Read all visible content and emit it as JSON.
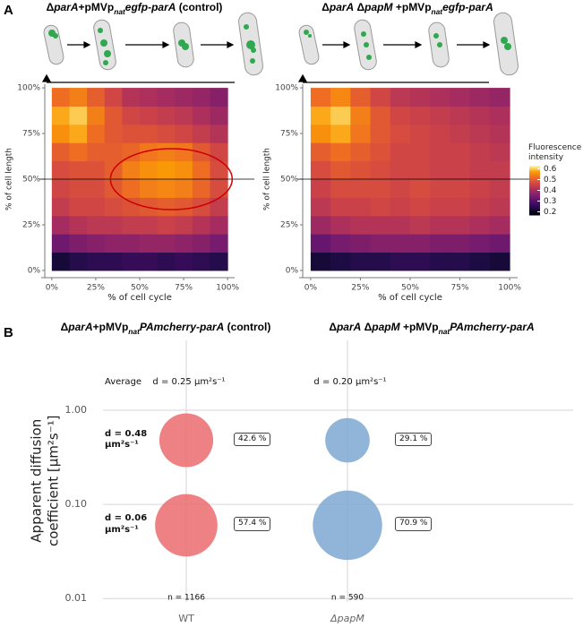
{
  "panel_labels": [
    "A",
    "B"
  ],
  "chart_data": [
    {
      "type": "heatmap",
      "title": [
        {
          "text": "Δ",
          "style": "n"
        },
        {
          "text": "parA",
          "style": "i"
        },
        {
          "text": "+pMVp",
          "style": "n"
        },
        {
          "text": "nat",
          "style": "sub"
        },
        {
          "text": "egfp-parA",
          "style": "i"
        },
        {
          "text": " (control)",
          "style": "n"
        }
      ],
      "xlabel": "% of cell cycle",
      "ylabel": "% of cell length",
      "xlim": [
        -4,
        104
      ],
      "ylim": [
        -2,
        102
      ],
      "xticks": [
        {
          "value": 0,
          "label": "0%"
        },
        {
          "value": 25,
          "label": "25%"
        },
        {
          "value": 50,
          "label": "50%"
        },
        {
          "value": 75,
          "label": "75%"
        },
        {
          "value": 100,
          "label": "100%"
        }
      ],
      "yticks": [
        {
          "value": 0,
          "label": "0%"
        },
        {
          "value": 25,
          "label": "25%"
        },
        {
          "value": 50,
          "label": "50%"
        },
        {
          "value": 75,
          "label": "75%"
        },
        {
          "value": 100,
          "label": "100%"
        }
      ],
      "x_bins": [
        0,
        10,
        20,
        30,
        40,
        50,
        60,
        70,
        80,
        90,
        100
      ],
      "y_bins": [
        0,
        10,
        20,
        30,
        40,
        50,
        60,
        70,
        80,
        90,
        100
      ],
      "colormap": "inferno",
      "clim": [
        0.17,
        0.63
      ],
      "hline": 50,
      "z": [
        [
          0.22,
          0.24,
          0.25,
          0.25,
          0.26,
          0.26,
          0.25,
          0.26,
          0.25,
          0.24
        ],
        [
          0.33,
          0.35,
          0.36,
          0.37,
          0.37,
          0.38,
          0.38,
          0.37,
          0.36,
          0.34
        ],
        [
          0.4,
          0.42,
          0.43,
          0.43,
          0.44,
          0.44,
          0.45,
          0.44,
          0.42,
          0.4
        ],
        [
          0.44,
          0.46,
          0.46,
          0.47,
          0.48,
          0.49,
          0.5,
          0.49,
          0.47,
          0.44
        ],
        [
          0.46,
          0.47,
          0.47,
          0.49,
          0.52,
          0.54,
          0.55,
          0.54,
          0.51,
          0.47
        ],
        [
          0.47,
          0.48,
          0.48,
          0.5,
          0.54,
          0.56,
          0.57,
          0.56,
          0.52,
          0.47
        ],
        [
          0.5,
          0.52,
          0.5,
          0.5,
          0.51,
          0.53,
          0.54,
          0.53,
          0.49,
          0.46
        ],
        [
          0.56,
          0.58,
          0.52,
          0.49,
          0.48,
          0.48,
          0.47,
          0.46,
          0.44,
          0.42
        ],
        [
          0.58,
          0.6,
          0.54,
          0.49,
          0.46,
          0.45,
          0.44,
          0.43,
          0.41,
          0.39
        ],
        [
          0.52,
          0.54,
          0.5,
          0.46,
          0.42,
          0.41,
          0.4,
          0.39,
          0.38,
          0.36
        ]
      ]
    },
    {
      "type": "heatmap",
      "title": [
        {
          "text": "Δ",
          "style": "n"
        },
        {
          "text": "parA",
          "style": "i"
        },
        {
          "text": " Δ",
          "style": "n"
        },
        {
          "text": "papM",
          "style": "i"
        },
        {
          "text": " +pMVp",
          "style": "n"
        },
        {
          "text": "nat",
          "style": "sub"
        },
        {
          "text": "egfp-parA",
          "style": "i"
        }
      ],
      "xlabel": "% of cell cycle",
      "ylabel": "% of cell length",
      "xlim": [
        -4,
        104
      ],
      "ylim": [
        -2,
        102
      ],
      "xticks": [
        {
          "value": 0,
          "label": "0%"
        },
        {
          "value": 25,
          "label": "25%"
        },
        {
          "value": 50,
          "label": "50%"
        },
        {
          "value": 75,
          "label": "75%"
        },
        {
          "value": 100,
          "label": "100%"
        }
      ],
      "yticks": [
        {
          "value": 0,
          "label": "0%"
        },
        {
          "value": 25,
          "label": "25%"
        },
        {
          "value": 50,
          "label": "50%"
        },
        {
          "value": 75,
          "label": "75%"
        },
        {
          "value": 100,
          "label": "100%"
        }
      ],
      "x_bins": [
        0,
        10,
        20,
        30,
        40,
        50,
        60,
        70,
        80,
        90,
        100
      ],
      "y_bins": [
        0,
        10,
        20,
        30,
        40,
        50,
        60,
        70,
        80,
        90,
        100
      ],
      "colormap": "inferno",
      "clim": [
        0.17,
        0.63
      ],
      "hline": 50,
      "colorbar_title": "Fluorescence intensity",
      "cticks": [
        0.2,
        0.3,
        0.4,
        0.5,
        0.6
      ],
      "z": [
        [
          0.22,
          0.23,
          0.24,
          0.24,
          0.25,
          0.25,
          0.24,
          0.24,
          0.23,
          0.22
        ],
        [
          0.32,
          0.34,
          0.35,
          0.36,
          0.36,
          0.36,
          0.35,
          0.35,
          0.34,
          0.33
        ],
        [
          0.39,
          0.41,
          0.42,
          0.42,
          0.42,
          0.43,
          0.42,
          0.42,
          0.41,
          0.4
        ],
        [
          0.43,
          0.45,
          0.45,
          0.46,
          0.45,
          0.46,
          0.45,
          0.45,
          0.44,
          0.43
        ],
        [
          0.45,
          0.47,
          0.47,
          0.47,
          0.46,
          0.47,
          0.46,
          0.46,
          0.45,
          0.44
        ],
        [
          0.47,
          0.49,
          0.48,
          0.47,
          0.46,
          0.46,
          0.45,
          0.45,
          0.44,
          0.44
        ],
        [
          0.5,
          0.52,
          0.5,
          0.48,
          0.46,
          0.46,
          0.45,
          0.45,
          0.44,
          0.43
        ],
        [
          0.56,
          0.58,
          0.53,
          0.49,
          0.47,
          0.46,
          0.45,
          0.44,
          0.43,
          0.42
        ],
        [
          0.58,
          0.6,
          0.54,
          0.49,
          0.46,
          0.45,
          0.44,
          0.43,
          0.42,
          0.41
        ],
        [
          0.52,
          0.55,
          0.5,
          0.46,
          0.43,
          0.42,
          0.41,
          0.4,
          0.39,
          0.38
        ]
      ]
    },
    {
      "type": "bubble",
      "titles": [
        [
          {
            "text": "Δ",
            "style": "n"
          },
          {
            "text": "parA",
            "style": "i"
          },
          {
            "text": "+pMVp",
            "style": "n"
          },
          {
            "text": "nat",
            "style": "sub"
          },
          {
            "text": "PAmcherry-parA",
            "style": "i"
          },
          {
            "text": " (control)",
            "style": "n"
          }
        ],
        [
          {
            "text": "Δ",
            "style": "n"
          },
          {
            "text": "parA",
            "style": "i"
          },
          {
            "text": " Δ",
            "style": "n"
          },
          {
            "text": "papM",
            "style": "i"
          },
          {
            "text": " +pMVp",
            "style": "n"
          },
          {
            "text": "nat",
            "style": "sub"
          },
          {
            "text": "PAmcherry-parA",
            "style": "i"
          }
        ]
      ],
      "ylabel": "Apparent diffusion coefficient [µm²s⁻¹]",
      "categories": [
        "WT",
        "ΔpapM"
      ],
      "log_y": true,
      "ylim": [
        0.0092,
        2.3
      ],
      "yticks": [
        0.01,
        {
          "value": 0.1,
          "label": "0.10"
        },
        {
          "value": 1,
          "label": "1.00"
        }
      ],
      "grid": true,
      "average_label": "Average",
      "average_values": [
        "d = 0.25 µm²s⁻¹",
        "d = 0.20 µm²s⁻¹"
      ],
      "row_labels": [
        "d = 0.48 µm²s⁻¹",
        "d = 0.06 µm²s⁻¹"
      ],
      "n_labels": [
        "n = 1166",
        "n = 590"
      ],
      "series": [
        {
          "color": "#eb6b6e",
          "values": [
            0.48,
            0.06
          ],
          "sizes": [
            42.6,
            57.4
          ],
          "value_labels": [
            "42.6 %",
            "57.4 %"
          ]
        },
        {
          "color": "#7ea8d1",
          "values": [
            0.48,
            0.06
          ],
          "sizes": [
            29.1,
            70.9
          ],
          "value_labels": [
            "29.1 %",
            "70.9 %"
          ]
        }
      ]
    }
  ]
}
